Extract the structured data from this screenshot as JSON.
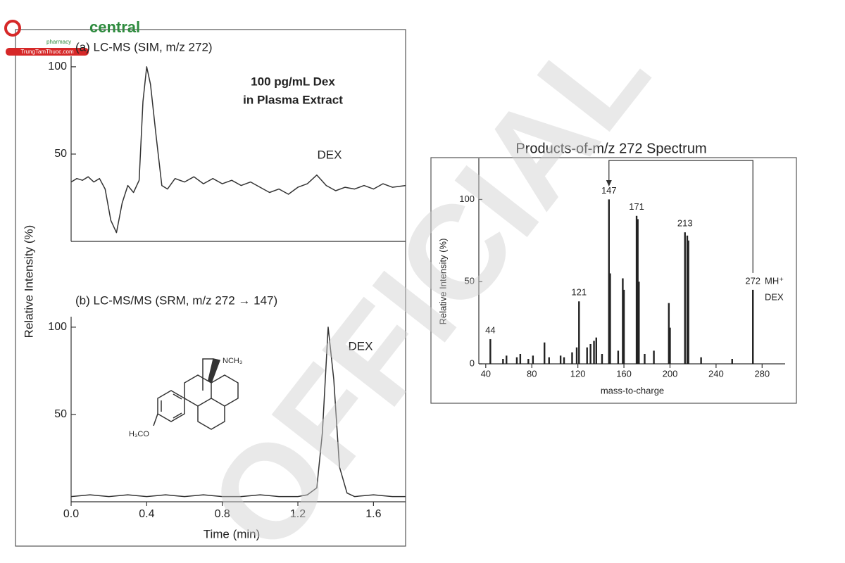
{
  "overlay": {
    "logo": "central",
    "logo_sub": "pharmacy",
    "logo_url": "TrungTamThuoc.com",
    "watermark": "OFFICIAL"
  },
  "chart_data": [
    {
      "type": "line",
      "title": "(a) LC-MS (SIM, m/z 272)",
      "ylabel": "Relative Intensity (%)",
      "annotations": [
        "100 pg/mL Dex",
        "in Plasma Extract",
        "DEX"
      ],
      "x": [
        0.0,
        0.03,
        0.06,
        0.09,
        0.12,
        0.15,
        0.18,
        0.21,
        0.24,
        0.27,
        0.3,
        0.33,
        0.36,
        0.38,
        0.4,
        0.42,
        0.45,
        0.48,
        0.51,
        0.55,
        0.6,
        0.65,
        0.7,
        0.75,
        0.8,
        0.85,
        0.9,
        0.95,
        1.0,
        1.05,
        1.1,
        1.15,
        1.2,
        1.25,
        1.3,
        1.35,
        1.4,
        1.45,
        1.5,
        1.55,
        1.6,
        1.65,
        1.7,
        1.77
      ],
      "values": [
        34,
        36,
        35,
        37,
        34,
        36,
        30,
        12,
        5,
        22,
        32,
        28,
        35,
        80,
        100,
        90,
        60,
        32,
        30,
        36,
        34,
        37,
        33,
        36,
        33,
        35,
        32,
        34,
        31,
        28,
        30,
        27,
        31,
        33,
        38,
        32,
        29,
        31,
        30,
        32,
        30,
        33,
        31,
        32
      ],
      "color": "#333333",
      "xlim": [
        0,
        1.77
      ],
      "ylim": [
        0,
        106
      ],
      "yticks": [
        50,
        100
      ]
    },
    {
      "type": "line",
      "title": "(b) LC-MS/MS (SRM, m/z 272 → 147)",
      "xlabel": "Time (min)",
      "annotations": [
        "DEX",
        "NCH₃",
        "H₃CO"
      ],
      "x": [
        0.0,
        0.1,
        0.2,
        0.3,
        0.4,
        0.5,
        0.6,
        0.7,
        0.8,
        0.9,
        1.0,
        1.1,
        1.2,
        1.25,
        1.3,
        1.33,
        1.36,
        1.39,
        1.42,
        1.46,
        1.5,
        1.6,
        1.7,
        1.77
      ],
      "values": [
        3,
        4,
        3,
        4,
        3,
        4,
        3,
        4,
        3,
        3,
        4,
        3,
        3,
        4,
        8,
        40,
        100,
        70,
        20,
        5,
        3,
        4,
        3,
        3
      ],
      "color": "#333333",
      "xlim": [
        0,
        1.77
      ],
      "ylim": [
        0,
        106
      ],
      "yticks": [
        50,
        100
      ],
      "xticks": [
        {
          "value": 0,
          "label": "0.0"
        },
        0.4,
        0.8,
        1.2,
        1.6
      ]
    },
    {
      "type": "bar",
      "title": "Products-of-m/z 272 Spectrum",
      "xlabel": "mass-to-charge",
      "ylabel": "Relative Intensity (%)",
      "annotations": [
        "MH⁺",
        "DEX"
      ],
      "x": [
        44,
        55,
        58,
        67,
        70,
        77,
        81,
        91,
        95,
        105,
        108,
        115,
        119,
        121,
        128,
        131,
        134,
        136,
        141,
        147,
        148,
        155,
        159,
        160,
        171,
        172,
        173,
        178,
        186,
        199,
        200,
        213,
        215,
        216,
        227,
        254,
        272
      ],
      "values": [
        15,
        3,
        5,
        4,
        6,
        3,
        5,
        13,
        4,
        5,
        4,
        7,
        10,
        38,
        10,
        12,
        14,
        16,
        6,
        100,
        55,
        8,
        52,
        45,
        90,
        88,
        50,
        6,
        8,
        37,
        22,
        80,
        78,
        75,
        4,
        3,
        45
      ],
      "peak_labels": [
        "44",
        null,
        null,
        null,
        null,
        null,
        null,
        null,
        null,
        null,
        null,
        null,
        null,
        "121",
        null,
        null,
        null,
        null,
        null,
        "147",
        null,
        null,
        null,
        null,
        "171",
        null,
        null,
        null,
        null,
        null,
        null,
        "213",
        null,
        null,
        null,
        null,
        "272"
      ],
      "color": "#222222",
      "xlim": [
        34,
        300
      ],
      "ylim": [
        0,
        125
      ],
      "yticks": [
        0,
        50,
        100
      ],
      "xticks": [
        40,
        80,
        120,
        160,
        200,
        240,
        280
      ]
    }
  ]
}
